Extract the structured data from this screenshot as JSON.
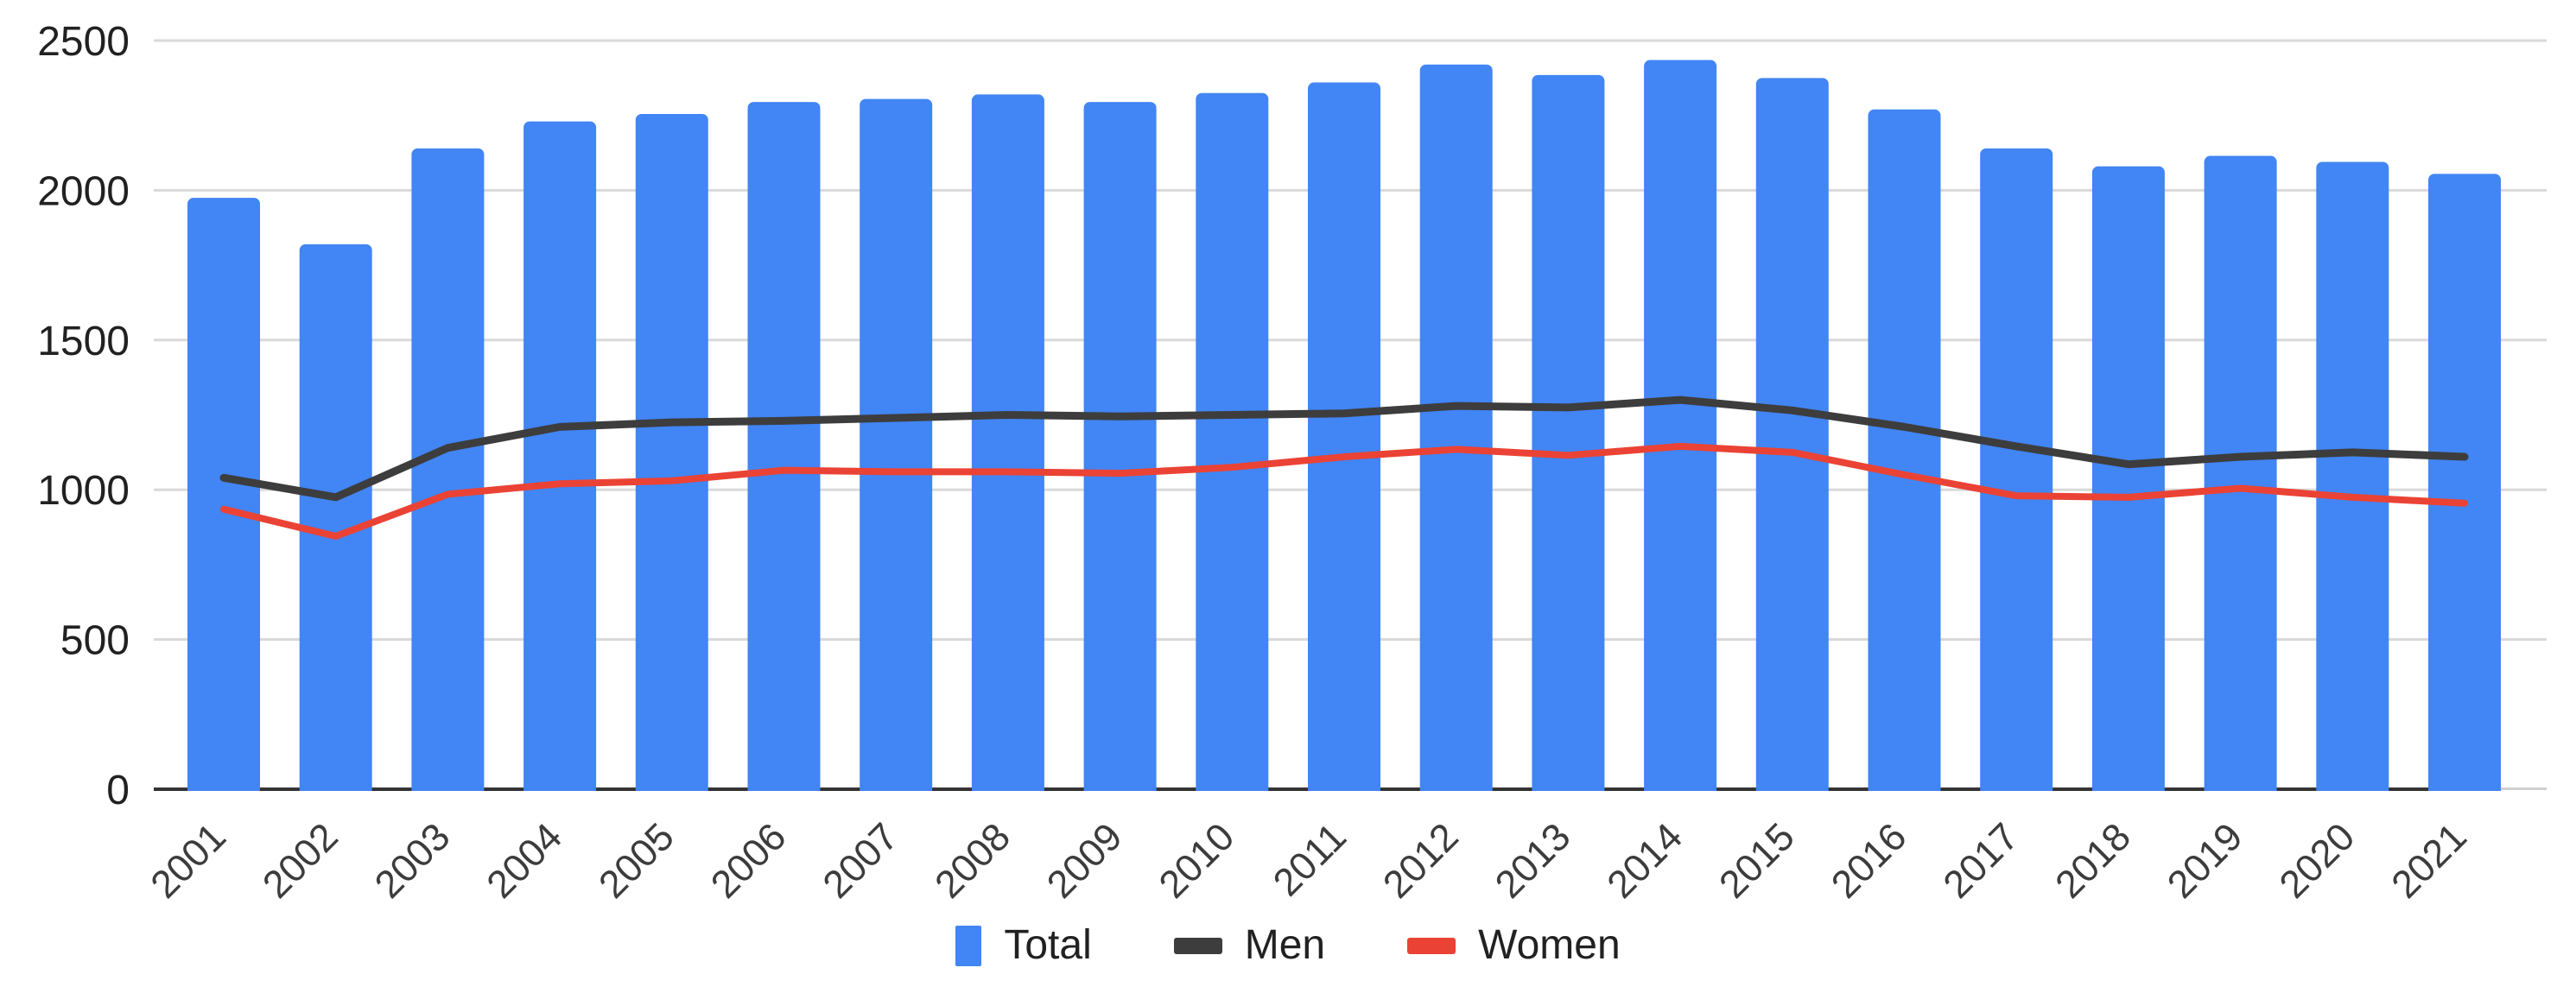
{
  "chart_data": {
    "type": "bar",
    "subtype": "combo-bar-line",
    "title": "",
    "xlabel": "",
    "ylabel": "",
    "categories": [
      "2001",
      "2002",
      "2003",
      "2004",
      "2005",
      "2006",
      "2007",
      "2008",
      "2009",
      "2010",
      "2011",
      "2012",
      "2013",
      "2014",
      "2015",
      "2016",
      "2017",
      "2018",
      "2019",
      "2020",
      "2021"
    ],
    "series": [
      {
        "name": "Total",
        "type": "bar",
        "color": "#4285f4",
        "values": [
          1975,
          1820,
          2140,
          2230,
          2255,
          2295,
          2305,
          2320,
          2295,
          2325,
          2360,
          2420,
          2385,
          2435,
          2375,
          2270,
          2140,
          2080,
          2115,
          2095,
          2055
        ]
      },
      {
        "name": "Men",
        "type": "line",
        "color": "#3d3d3d",
        "values": [
          1040,
          975,
          1140,
          1210,
          1225,
          1230,
          1240,
          1250,
          1245,
          1250,
          1255,
          1280,
          1275,
          1300,
          1265,
          1210,
          1145,
          1085,
          1110,
          1125,
          1110
        ]
      },
      {
        "name": "Women",
        "type": "line",
        "color": "#ea4335",
        "values": [
          935,
          845,
          985,
          1020,
          1030,
          1065,
          1060,
          1060,
          1055,
          1075,
          1110,
          1135,
          1115,
          1145,
          1125,
          1050,
          980,
          975,
          1005,
          975,
          955
        ]
      }
    ],
    "ylim": [
      0,
      2500
    ],
    "y_ticks": [
      "0",
      "500",
      "1000",
      "1500",
      "2000",
      "2500"
    ],
    "grid": true,
    "gridline_color": "#d9d9d9",
    "axis_line_color": "#333333",
    "legend_position": "bottom"
  },
  "legend": {
    "items": [
      {
        "label": "Total"
      },
      {
        "label": "Men"
      },
      {
        "label": "Women"
      }
    ]
  }
}
